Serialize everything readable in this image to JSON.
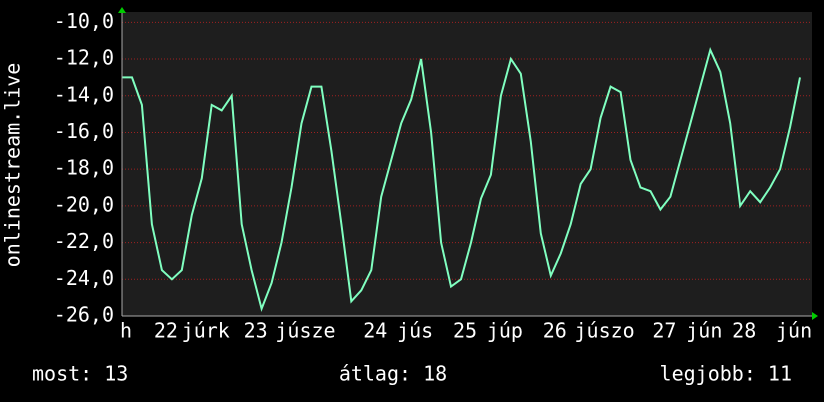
{
  "chart_data": {
    "type": "line",
    "y_label": "onlinestream.live",
    "categories": [
      "h",
      null,
      null,
      null,
      "22",
      null,
      null,
      null,
      "júrk",
      null,
      null,
      null,
      null,
      "23",
      null,
      null,
      null,
      null,
      "júsze",
      null,
      null,
      null,
      null,
      null,
      null,
      "24",
      null,
      null,
      null,
      "jús",
      null,
      null,
      null,
      null,
      "25",
      null,
      null,
      null,
      "júp",
      null,
      null,
      null,
      null,
      "26",
      null,
      null,
      null,
      null,
      "júszo",
      null,
      null,
      null,
      null,
      null,
      "27",
      null,
      null,
      null,
      "jún",
      null,
      null,
      null,
      "28",
      null,
      null,
      null,
      null,
      "jún",
      null
    ],
    "series": [
      {
        "name": null,
        "color": "#80ffc0",
        "values": [
          -13,
          -13,
          -14.5,
          -21,
          -23.5,
          -24,
          -23.5,
          -20.5,
          -18.5,
          -14.5,
          -14.8,
          -14,
          -21,
          -23.5,
          -25.6,
          -24.2,
          -22,
          -19,
          -15.5,
          -13.5,
          -13.5,
          -17,
          -21,
          -25.2,
          -24.6,
          -23.5,
          -19.5,
          -17.5,
          -15.5,
          -14.2,
          -12,
          -16,
          -22,
          -24.4,
          -24,
          -22,
          -19.6,
          -18.3,
          -14,
          -12,
          -12.8,
          -16.5,
          -21.5,
          -23.8,
          -22.6,
          -21,
          -18.8,
          -18,
          -15.2,
          -13.5,
          -13.8,
          -17.5,
          -19,
          -19.2,
          -20.2,
          -19.5,
          -17.5,
          -15.5,
          -13.5,
          -11.5,
          -12.7,
          -15.5,
          -20,
          -19.2,
          -19.8,
          -19,
          -18,
          -15.7,
          -13
        ]
      }
    ],
    "ylim": [
      -26,
      -9.6
    ],
    "yticks": [
      {
        "value": -26,
        "label": "-26,0"
      },
      {
        "value": -24,
        "label": "-24,0"
      },
      {
        "value": -22,
        "label": "-22,0"
      },
      {
        "value": -20,
        "label": "-20,0"
      },
      {
        "value": -18,
        "label": "-18,0"
      },
      {
        "value": -16,
        "label": "-16,0"
      },
      {
        "value": -14,
        "label": "-14,0"
      },
      {
        "value": -12,
        "label": "-12,0"
      },
      {
        "value": -10,
        "label": "-10,0"
      }
    ],
    "grid": true,
    "annotations": [
      "most: 13",
      "átlag: 18",
      "legjobb: 11"
    ]
  }
}
